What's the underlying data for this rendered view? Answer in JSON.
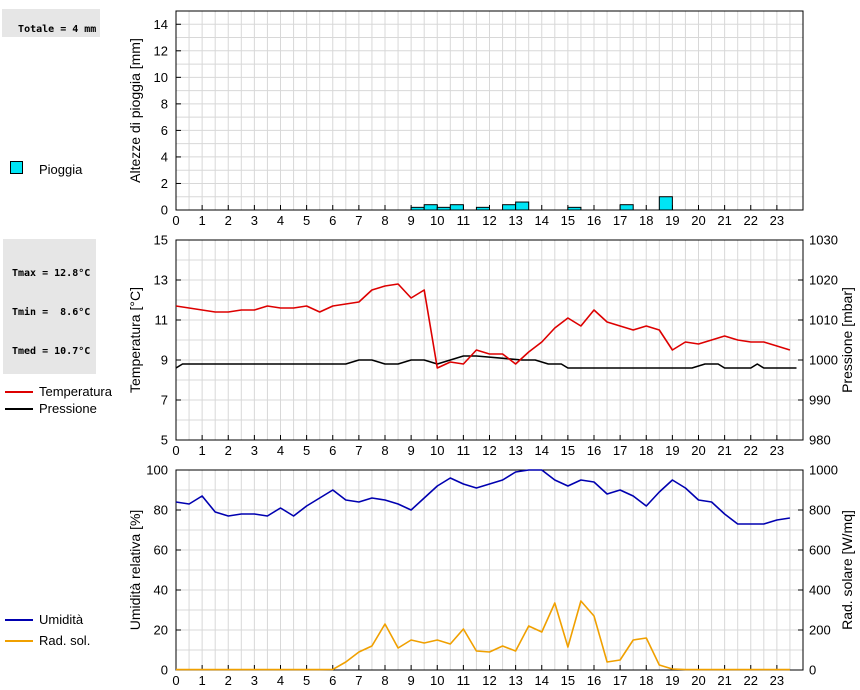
{
  "stats": {
    "rain_total": "Totale = 4 mm",
    "tmax": "Tmax = 12.8°C",
    "tmin": "Tmin =  8.6°C",
    "tmed": "Tmed = 10.7°C"
  },
  "legend": {
    "rain": "Pioggia",
    "temperature": "Temperatura",
    "pressure": "Pressione",
    "humidity": "Umidità",
    "solar": "Rad. sol."
  },
  "colors": {
    "rain": "#00e5f5",
    "temperature": "#dd0000",
    "pressure": "#000000",
    "humidity": "#0000b0",
    "solar": "#f0a000",
    "grid": "#d8d8d8"
  },
  "chart_data": [
    {
      "type": "bar",
      "ylabel": "Altezze di pioggia [mm]",
      "xlabel": "",
      "xlim": [
        0,
        24
      ],
      "ylim": [
        0,
        15
      ],
      "yticks": [
        0,
        2,
        4,
        6,
        8,
        10,
        12,
        14
      ],
      "xticks": [
        "0",
        "1",
        "2",
        "3",
        "4",
        "5",
        "6",
        "7",
        "8",
        "9",
        "10",
        "11",
        "12",
        "13",
        "14",
        "15",
        "16",
        "17",
        "18",
        "19",
        "20",
        "21",
        "22",
        "23"
      ],
      "grid": true,
      "series": [
        {
          "name": "Pioggia",
          "x": [
            9.25,
            9.75,
            10.25,
            10.75,
            11.75,
            12.75,
            13.25,
            15.25,
            17.25,
            18.75
          ],
          "values": [
            0.2,
            0.4,
            0.2,
            0.4,
            0.2,
            0.4,
            0.6,
            0.2,
            0.4,
            1.0
          ]
        }
      ]
    },
    {
      "type": "line",
      "ylabel": "Temperatura [°C]",
      "y2label": "Pressione [mbar]",
      "xlim": [
        0,
        24
      ],
      "ylim": [
        5,
        15
      ],
      "y2lim": [
        980,
        1030
      ],
      "yticks": [
        5,
        7,
        9,
        11,
        13,
        15
      ],
      "y2ticks": [
        980,
        990,
        1000,
        1010,
        1020,
        1030
      ],
      "xticks": [
        "0",
        "1",
        "2",
        "3",
        "4",
        "5",
        "6",
        "7",
        "8",
        "9",
        "10",
        "11",
        "12",
        "13",
        "14",
        "15",
        "16",
        "17",
        "18",
        "19",
        "20",
        "21",
        "22",
        "23"
      ],
      "grid": true,
      "series": [
        {
          "name": "Temperatura",
          "axis": "left",
          "x": [
            0,
            0.5,
            1,
            1.5,
            2,
            2.5,
            3,
            3.5,
            4,
            4.5,
            5,
            5.5,
            6,
            6.5,
            7,
            7.5,
            8,
            8.5,
            9,
            9.5,
            10,
            10.5,
            11,
            11.5,
            12,
            12.5,
            13,
            13.5,
            14,
            14.5,
            15,
            15.5,
            16,
            16.5,
            17,
            17.5,
            18,
            18.5,
            19,
            19.5,
            20,
            20.5,
            21,
            21.5,
            22,
            22.5,
            23,
            23.5
          ],
          "values": [
            11.7,
            11.6,
            11.5,
            11.4,
            11.4,
            11.5,
            11.5,
            11.7,
            11.6,
            11.6,
            11.7,
            11.4,
            11.7,
            11.8,
            11.9,
            12.5,
            12.7,
            12.8,
            12.1,
            12.5,
            8.6,
            8.9,
            8.8,
            9.5,
            9.3,
            9.3,
            8.8,
            9.4,
            9.9,
            10.6,
            11.1,
            10.7,
            11.5,
            10.9,
            10.7,
            10.5,
            10.7,
            10.5,
            9.5,
            9.9,
            9.8,
            10.0,
            10.2,
            10.0,
            9.9,
            9.9,
            9.7,
            9.5
          ]
        },
        {
          "name": "Pressione",
          "axis": "right",
          "x": [
            0,
            0.25,
            0.5,
            6.25,
            6.5,
            7.0,
            7.5,
            8.0,
            8.5,
            9.0,
            9.5,
            10.0,
            10.5,
            11.0,
            11.5,
            13.25,
            13.75,
            14.25,
            14.75,
            15.0,
            19.25,
            19.75,
            20.25,
            20.75,
            21.0,
            21.75,
            22.0,
            22.25,
            22.5,
            23.75
          ],
          "values": [
            998,
            999,
            999,
            999,
            999,
            1000,
            1000,
            999,
            999,
            1000,
            1000,
            999,
            1000,
            1001,
            1001,
            1000,
            1000,
            999,
            999,
            998,
            998,
            998,
            999,
            999,
            998,
            998,
            998,
            999,
            998,
            998
          ]
        }
      ]
    },
    {
      "type": "line",
      "ylabel": "Umidità relativa [%]",
      "y2label": "Rad. solare [W/mq]",
      "xlim": [
        0,
        24
      ],
      "ylim": [
        0,
        100
      ],
      "y2lim": [
        0,
        1000
      ],
      "yticks": [
        0,
        20,
        40,
        60,
        80,
        100
      ],
      "y2ticks": [
        0,
        200,
        400,
        600,
        800,
        1000
      ],
      "xticks": [
        "0",
        "1",
        "2",
        "3",
        "4",
        "5",
        "6",
        "7",
        "8",
        "9",
        "10",
        "11",
        "12",
        "13",
        "14",
        "15",
        "16",
        "17",
        "18",
        "19",
        "20",
        "21",
        "22",
        "23"
      ],
      "grid": true,
      "series": [
        {
          "name": "Umidità",
          "axis": "left",
          "x": [
            0,
            0.5,
            1,
            1.5,
            2,
            2.5,
            3,
            3.5,
            4,
            4.5,
            5,
            5.5,
            6,
            6.5,
            7,
            7.5,
            8,
            8.5,
            9,
            9.5,
            10,
            10.5,
            11,
            11.5,
            12,
            12.5,
            13,
            13.5,
            14,
            14.5,
            15,
            15.5,
            16,
            16.5,
            17,
            17.5,
            18,
            18.5,
            19,
            19.5,
            20,
            20.5,
            21,
            21.5,
            22,
            22.5,
            23,
            23.5
          ],
          "values": [
            84,
            83,
            87,
            79,
            77,
            78,
            78,
            77,
            81,
            77,
            82,
            86,
            90,
            85,
            84,
            86,
            85,
            83,
            80,
            86,
            92,
            96,
            93,
            91,
            93,
            95,
            99,
            100,
            100,
            95,
            92,
            95,
            94,
            88,
            90,
            87,
            82,
            89,
            95,
            91,
            85,
            84,
            78,
            73,
            73,
            73,
            75,
            76
          ]
        },
        {
          "name": "Rad. sol.",
          "axis": "right",
          "x": [
            0,
            0.5,
            1,
            1.5,
            2,
            2.5,
            3,
            3.5,
            4,
            4.5,
            5,
            5.5,
            6,
            6.5,
            7,
            7.5,
            8,
            8.5,
            9,
            9.5,
            10,
            10.5,
            11,
            11.5,
            12,
            12.5,
            13,
            13.5,
            14,
            14.5,
            15,
            15.5,
            16,
            16.5,
            17,
            17.5,
            18,
            18.5,
            19,
            19.5,
            20,
            20.5,
            21,
            21.5,
            22,
            22.5,
            23,
            23.5
          ],
          "values": [
            2,
            2,
            2,
            2,
            2,
            2,
            2,
            2,
            2,
            2,
            2,
            2,
            3,
            40,
            90,
            120,
            230,
            110,
            150,
            135,
            150,
            130,
            205,
            95,
            90,
            120,
            95,
            220,
            190,
            335,
            115,
            345,
            270,
            40,
            50,
            150,
            160,
            25,
            5,
            2,
            2,
            2,
            2,
            2,
            2,
            2,
            2,
            2
          ]
        }
      ]
    }
  ]
}
